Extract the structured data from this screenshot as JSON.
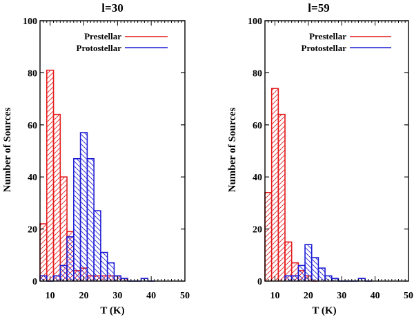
{
  "chart_data": [
    {
      "type": "histogram",
      "title": "l=30",
      "xlabel": "T (K)",
      "ylabel": "Number of Sources",
      "xlim": [
        7,
        50
      ],
      "ylim": [
        0,
        100
      ],
      "xticks": [
        10,
        20,
        30,
        40,
        50
      ],
      "yticks": [
        0,
        20,
        40,
        60,
        80,
        100
      ],
      "bin_width": 2,
      "legend": "top-right",
      "series": [
        {
          "name": "Prestellar",
          "color": "#e41a1c",
          "hatch": "/",
          "bins": [
            [
              7,
              22
            ],
            [
              9,
              81
            ],
            [
              11,
              64
            ],
            [
              13,
              40
            ],
            [
              15,
              19
            ],
            [
              17,
              4
            ],
            [
              19,
              5
            ],
            [
              21,
              2
            ],
            [
              23,
              2
            ],
            [
              25,
              2
            ],
            [
              27,
              2
            ],
            [
              29,
              2
            ],
            [
              31,
              1
            ]
          ]
        },
        {
          "name": "Protostellar",
          "color": "#1a1ad6",
          "hatch": "\\",
          "bins": [
            [
              7,
              2
            ],
            [
              9,
              0
            ],
            [
              11,
              2
            ],
            [
              13,
              6
            ],
            [
              15,
              17
            ],
            [
              17,
              47
            ],
            [
              19,
              57
            ],
            [
              21,
              47
            ],
            [
              23,
              27
            ],
            [
              25,
              11
            ],
            [
              27,
              7
            ],
            [
              29,
              2
            ],
            [
              31,
              1
            ],
            [
              33,
              0
            ],
            [
              35,
              0
            ],
            [
              37,
              1
            ],
            [
              39,
              0
            ]
          ]
        }
      ]
    },
    {
      "type": "histogram",
      "title": "l=59",
      "xlabel": "T (K)",
      "ylabel": "Number of Sources",
      "xlim": [
        7,
        50
      ],
      "ylim": [
        0,
        100
      ],
      "xticks": [
        10,
        20,
        30,
        40,
        50
      ],
      "yticks": [
        0,
        20,
        40,
        60,
        80,
        100
      ],
      "bin_width": 2,
      "legend": "top-right",
      "series": [
        {
          "name": "Prestellar",
          "color": "#e41a1c",
          "hatch": "/",
          "bins": [
            [
              7,
              34
            ],
            [
              9,
              74
            ],
            [
              11,
              64
            ],
            [
              13,
              15
            ],
            [
              15,
              7
            ],
            [
              17,
              4
            ],
            [
              19,
              2
            ],
            [
              21,
              0
            ]
          ]
        },
        {
          "name": "Protostellar",
          "color": "#1a1ad6",
          "hatch": "\\",
          "bins": [
            [
              13,
              2
            ],
            [
              15,
              2
            ],
            [
              17,
              6
            ],
            [
              19,
              14
            ],
            [
              21,
              9
            ],
            [
              23,
              5
            ],
            [
              25,
              2
            ],
            [
              27,
              1
            ],
            [
              29,
              0
            ],
            [
              31,
              0
            ],
            [
              33,
              0
            ],
            [
              35,
              1
            ],
            [
              37,
              0
            ]
          ]
        }
      ]
    }
  ]
}
